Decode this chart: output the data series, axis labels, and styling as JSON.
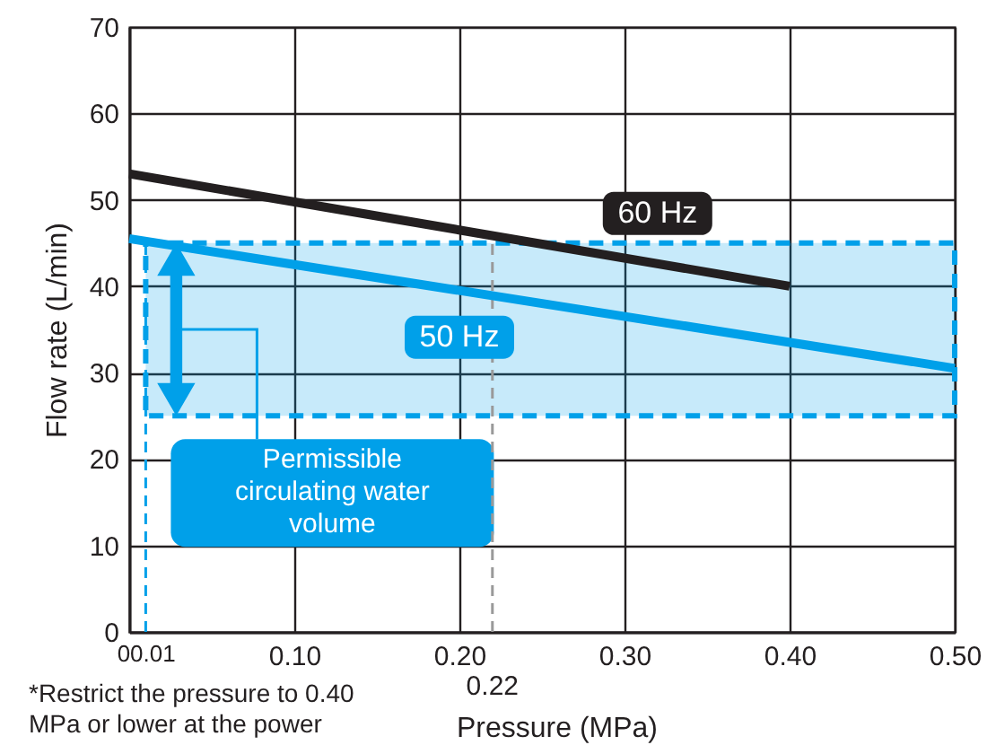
{
  "chart_data": {
    "type": "line",
    "xlabel": "Pressure (MPa)",
    "ylabel": "Flow rate (L/min)",
    "series": [
      {
        "name": "60 Hz",
        "color": "#231f20",
        "x": [
          0,
          0.4
        ],
        "values": [
          53,
          40
        ]
      },
      {
        "name": "50 Hz",
        "color": "#00a0e9",
        "x": [
          0,
          0.5
        ],
        "values": [
          45.5,
          30.5
        ]
      }
    ],
    "xlim": [
      0,
      0.5
    ],
    "ylim": [
      0,
      70
    ],
    "xticks": [
      0,
      0.01,
      {
        "value": 0.1,
        "label": "0.10"
      },
      {
        "value": 0.2,
        "label": "0.20"
      },
      {
        "value": 0.3,
        "label": "0.30"
      },
      {
        "value": 0.4,
        "label": "0.40"
      },
      {
        "value": 0.5,
        "label": "0.50"
      }
    ],
    "yticks": [
      0,
      10,
      20,
      30,
      40,
      50,
      60,
      70
    ],
    "grid": true,
    "bands": [
      {
        "axis": "y",
        "from": 25,
        "to": 45,
        "label": "Permissible circulating water volume",
        "color": "#00a0e9"
      }
    ],
    "ref_lines": [
      {
        "axis": "x",
        "value": 0.01,
        "label": null,
        "color": "#00a0e9",
        "line_style": "dashed"
      },
      {
        "axis": "x",
        "value": 0.22,
        "label": "0.22",
        "color": "#999999",
        "line_style": "dashed"
      }
    ],
    "annotations": [
      "*Restrict the pressure to 0.40 MPa or lower at the power"
    ]
  }
}
